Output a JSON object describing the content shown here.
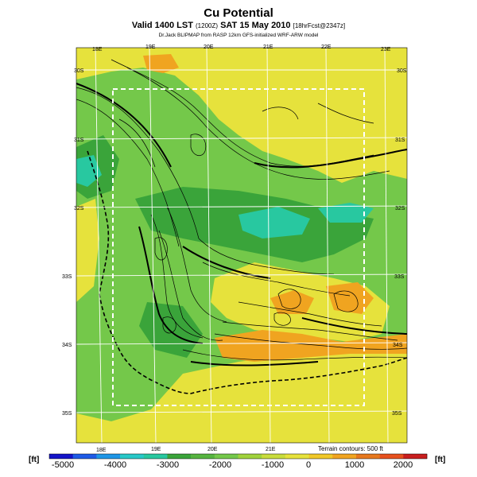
{
  "header": {
    "title": "Cu Potential",
    "subtitle_main": "Valid 1400 LST",
    "subtitle_utc": "(1200Z)",
    "subtitle_date": "SAT 15 May 2010",
    "subtitle_fcst": "[18hrFcst@2347z]",
    "credit": "Dr.Jack BLIPMAP from RASP 12km GFS-initialized WRF-ARW model"
  },
  "map": {
    "lon_labels_top": [
      "18E",
      "19E",
      "20E",
      "21E",
      "22E",
      "23E"
    ],
    "lon_labels_bottom": [
      "18E",
      "19E",
      "20E",
      "21E"
    ],
    "lat_labels_left": [
      "30S",
      "31S",
      "32S",
      "33S",
      "34S",
      "35S"
    ],
    "lat_labels_right": [
      "30S",
      "31S",
      "32S",
      "33S",
      "34S",
      "35S"
    ],
    "terrain_note": "Terrain contours: 500 ft",
    "colors": {
      "green": "#74c84a",
      "yellow": "#e6e23c",
      "orange": "#f0a420",
      "teal": "#28c8a0",
      "dark_green": "#3aa43a",
      "grid": "#ffffff",
      "contour": "#000000",
      "box": "#ffffff"
    }
  },
  "colorbar": {
    "unit_left": "[ft]",
    "unit_right": "[ft]",
    "labels": [
      "-5000",
      "-4000",
      "-3000",
      "-2000",
      "-1000",
      "0",
      "1000",
      "2000"
    ],
    "colors": [
      "#1414c8",
      "#1e5ae6",
      "#1e96e6",
      "#28c8c8",
      "#28c8a0",
      "#3aa43a",
      "#56b440",
      "#74c84a",
      "#a0d23c",
      "#c8dc3c",
      "#e6e23c",
      "#f0c828",
      "#f0a420",
      "#e6781e",
      "#e6501e",
      "#c81e1e"
    ]
  }
}
